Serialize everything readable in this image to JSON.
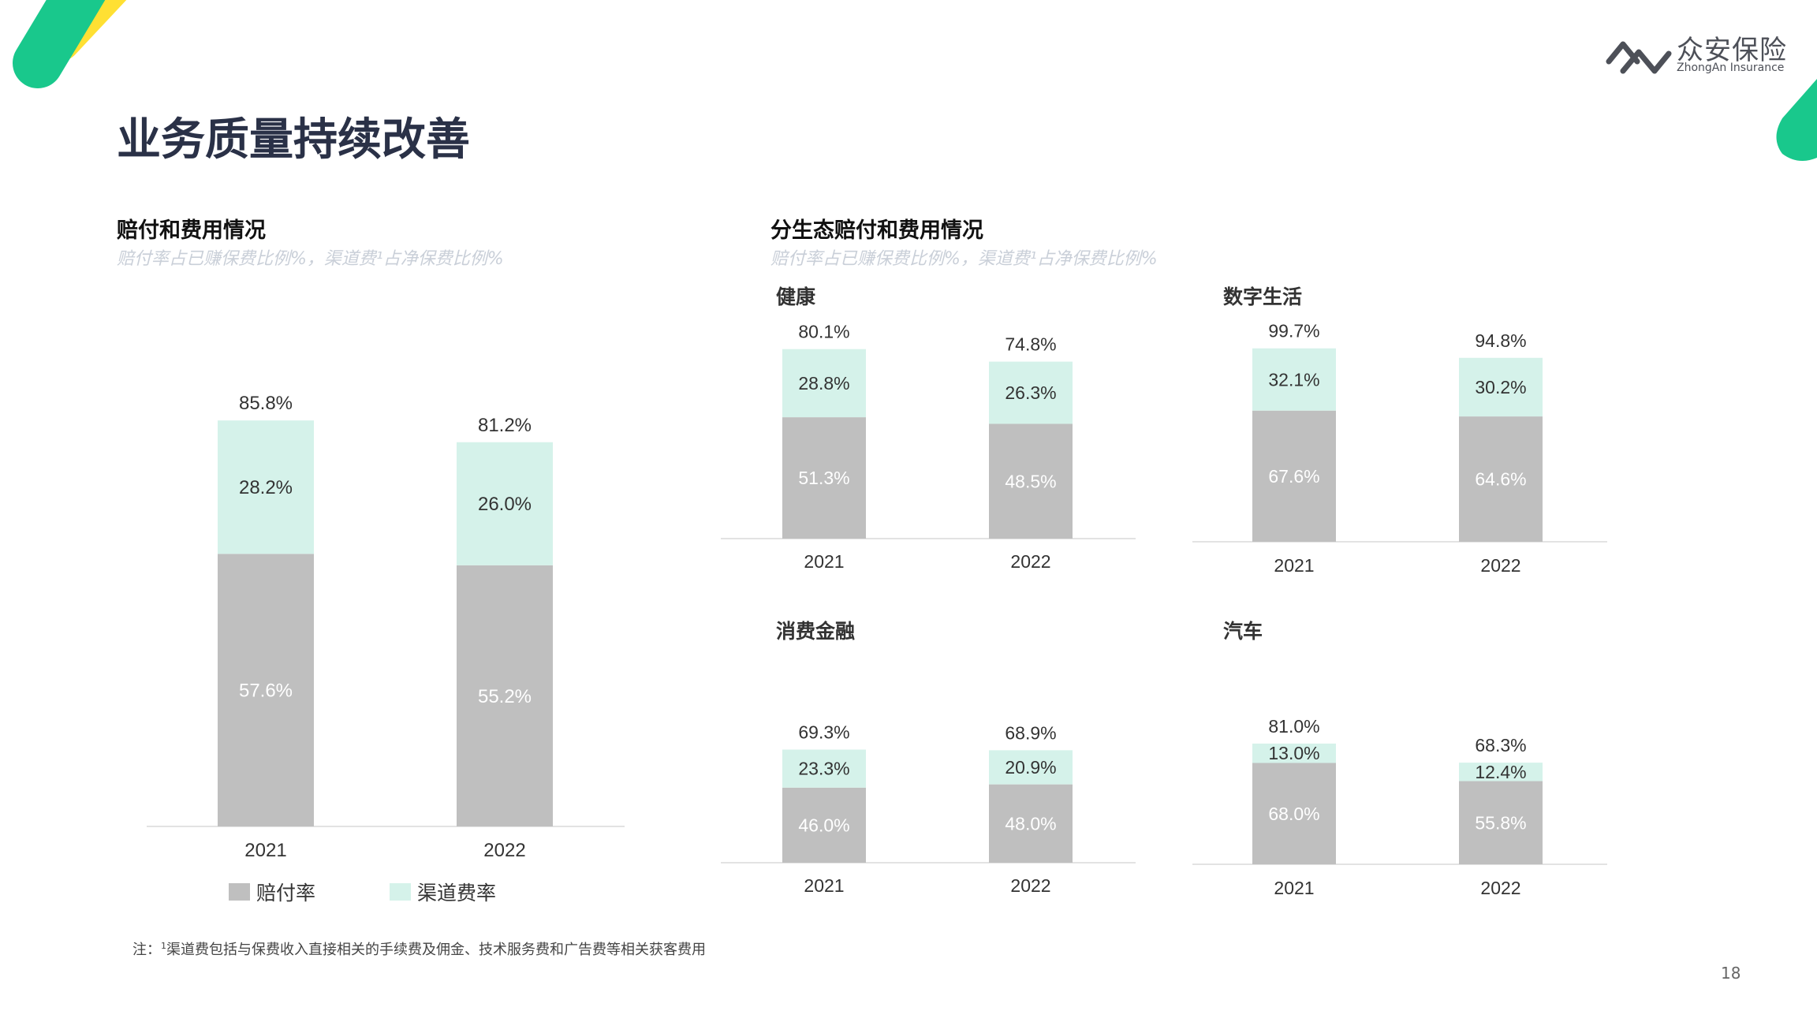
{
  "page": {
    "title": "业务质量持续改善",
    "page_number": "18",
    "footnote_mark": "注：",
    "footnote_sup": "1",
    "footnote_text": "渠道费包括与保费收入直接相关的手续费及佣金、技术服务费和广告费等相关获客费用"
  },
  "logo": {
    "cn": "众安保险",
    "en": "ZhongAn Insurance"
  },
  "colors": {
    "claims": "#bfbfbf",
    "channel": "#d5f2ea",
    "accent_green": "#19c88c",
    "accent_yellow": "#ffe033",
    "title": "#2a3147"
  },
  "left_section": {
    "title": "赔付和费用情况",
    "subtitle": "赔付率占已赚保费比例%，渠道费¹占净保费比例%"
  },
  "right_section": {
    "title": "分生态赔付和费用情况",
    "subtitle": "赔付率占已赚保费比例%，渠道费¹占净保费比例%"
  },
  "legend": {
    "claims_label": "赔付率",
    "channel_label": "渠道费率"
  },
  "chart_data": [
    {
      "id": "overall",
      "type": "bar",
      "stacked": true,
      "title": "",
      "categories": [
        "2021",
        "2022"
      ],
      "series": [
        {
          "name": "赔付率",
          "values": [
            57.6,
            55.2
          ],
          "labels": [
            "57.6%",
            "55.2%"
          ]
        },
        {
          "name": "渠道费率",
          "values": [
            28.2,
            26.0
          ],
          "labels": [
            "28.2%",
            "26.0%"
          ]
        }
      ],
      "totals": [
        85.8,
        81.2
      ],
      "total_labels": [
        "85.8%",
        "81.2%"
      ],
      "legend": "bottom"
    },
    {
      "id": "health",
      "type": "bar",
      "stacked": true,
      "title": "健康",
      "categories": [
        "2021",
        "2022"
      ],
      "series": [
        {
          "name": "赔付率",
          "values": [
            51.3,
            48.5
          ],
          "labels": [
            "51.3%",
            "48.5%"
          ]
        },
        {
          "name": "渠道费率",
          "values": [
            28.8,
            26.3
          ],
          "labels": [
            "28.8%",
            "26.3%"
          ]
        }
      ],
      "totals": [
        80.1,
        74.8
      ],
      "total_labels": [
        "80.1%",
        "74.8%"
      ]
    },
    {
      "id": "digital",
      "type": "bar",
      "stacked": true,
      "title": "数字生活",
      "categories": [
        "2021",
        "2022"
      ],
      "series": [
        {
          "name": "赔付率",
          "values": [
            67.6,
            64.6
          ],
          "labels": [
            "67.6%",
            "64.6%"
          ]
        },
        {
          "name": "渠道费率",
          "values": [
            32.1,
            30.2
          ],
          "labels": [
            "32.1%",
            "30.2%"
          ]
        }
      ],
      "totals": [
        99.7,
        94.8
      ],
      "total_labels": [
        "99.7%",
        "94.8%"
      ]
    },
    {
      "id": "consumer-finance",
      "type": "bar",
      "stacked": true,
      "title": "消费金融",
      "categories": [
        "2021",
        "2022"
      ],
      "series": [
        {
          "name": "赔付率",
          "values": [
            46.0,
            48.0
          ],
          "labels": [
            "46.0%",
            "48.0%"
          ]
        },
        {
          "name": "渠道费率",
          "values": [
            23.3,
            20.9
          ],
          "labels": [
            "23.3%",
            "20.9%"
          ]
        }
      ],
      "totals": [
        69.3,
        68.9
      ],
      "total_labels": [
        "69.3%",
        "68.9%"
      ]
    },
    {
      "id": "auto",
      "type": "bar",
      "stacked": true,
      "title": "汽车",
      "categories": [
        "2021",
        "2022"
      ],
      "series": [
        {
          "name": "赔付率",
          "values": [
            68.0,
            55.8
          ],
          "labels": [
            "68.0%",
            "55.8%"
          ]
        },
        {
          "name": "渠道费率",
          "values": [
            13.0,
            12.4
          ],
          "labels": [
            "13.0%",
            "12.4%"
          ]
        }
      ],
      "totals": [
        81.0,
        68.3
      ],
      "total_labels": [
        "81.0%",
        "68.3%"
      ]
    }
  ]
}
